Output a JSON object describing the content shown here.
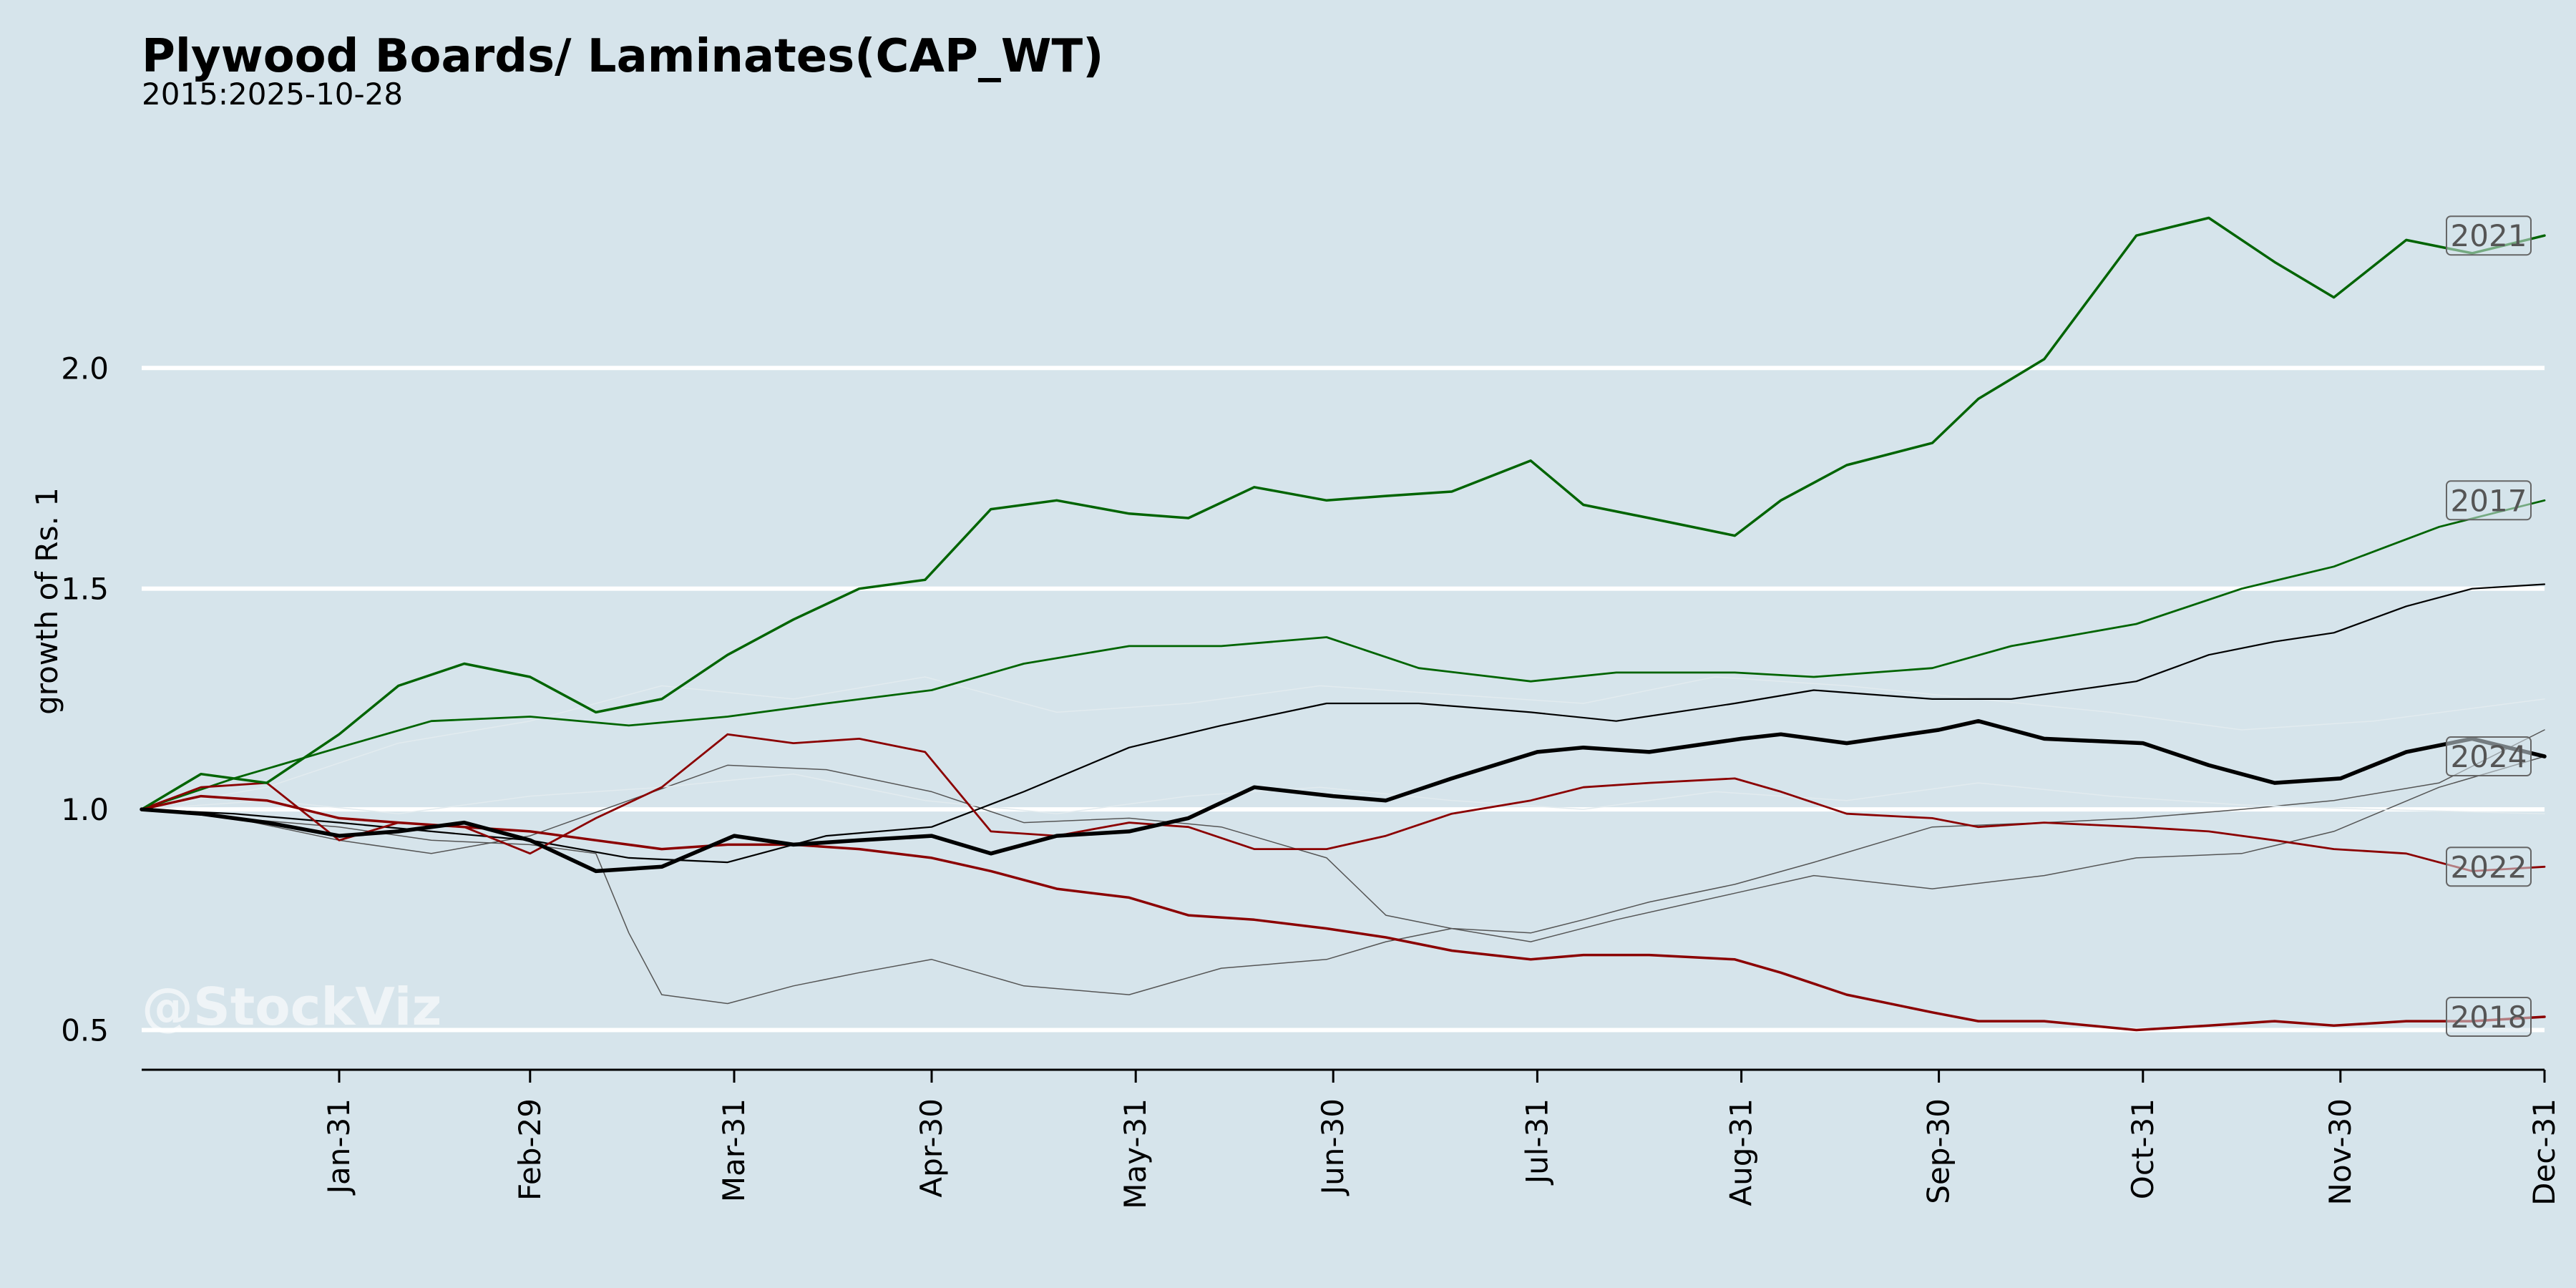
{
  "chart_data": {
    "type": "line",
    "title": "Plywood Boards/ Laminates(CAP_WT)",
    "subtitle": "2015:2025-10-28",
    "xlabel": "",
    "ylabel": "growth of Rs. 1",
    "watermark": "@StockViz",
    "x_ticks": [
      "Jan-31",
      "Feb-29",
      "Mar-31",
      "Apr-30",
      "May-31",
      "Jun-30",
      "Jul-31",
      "Aug-31",
      "Sep-30",
      "Oct-31",
      "Nov-30",
      "Dec-31"
    ],
    "y_ticks": [
      0.5,
      1.0,
      1.5,
      2.0
    ],
    "xlim": [
      1,
      366
    ],
    "ylim": [
      0.41,
      2.55
    ],
    "grid": true,
    "colors": {
      "background": "#d6e4eb",
      "grid": "#ffffff",
      "up": "#006400",
      "down": "#8b0000",
      "current": "#000000",
      "other": "#555555",
      "faint": "#e2ebef"
    },
    "series": [
      {
        "name": "2021",
        "color": "#006400",
        "width": 3.5,
        "labeled": true,
        "x": [
          1,
          10,
          20,
          31,
          40,
          50,
          60,
          70,
          80,
          90,
          100,
          110,
          120,
          130,
          140,
          151,
          160,
          170,
          181,
          190,
          200,
          212,
          220,
          230,
          243,
          250,
          260,
          273,
          280,
          290,
          304,
          315,
          325,
          334,
          345,
          355,
          366
        ],
        "y": [
          1.0,
          1.08,
          1.06,
          1.17,
          1.28,
          1.33,
          1.3,
          1.22,
          1.25,
          1.35,
          1.43,
          1.5,
          1.52,
          1.68,
          1.7,
          1.67,
          1.66,
          1.73,
          1.7,
          1.71,
          1.72,
          1.79,
          1.69,
          1.66,
          1.62,
          1.7,
          1.78,
          1.83,
          1.93,
          2.02,
          2.3,
          2.34,
          2.24,
          2.16,
          2.29,
          2.26,
          2.3
        ]
      },
      {
        "name": "2017",
        "color": "#006400",
        "width": 2.8,
        "labeled": true,
        "x": [
          1,
          15,
          31,
          45,
          60,
          75,
          90,
          105,
          121,
          135,
          151,
          165,
          181,
          195,
          212,
          225,
          243,
          255,
          273,
          285,
          304,
          320,
          334,
          350,
          366
        ],
        "y": [
          1.0,
          1.07,
          1.14,
          1.2,
          1.21,
          1.19,
          1.21,
          1.24,
          1.27,
          1.33,
          1.37,
          1.37,
          1.39,
          1.32,
          1.29,
          1.31,
          1.31,
          1.3,
          1.32,
          1.37,
          1.42,
          1.5,
          1.55,
          1.64,
          1.7
        ]
      },
      {
        "name": "2024",
        "color": "#000000",
        "width": 5.5,
        "labeled": true,
        "x": [
          1,
          10,
          20,
          31,
          40,
          50,
          60,
          70,
          80,
          91,
          100,
          110,
          121,
          130,
          140,
          151,
          160,
          170,
          182,
          190,
          200,
          213,
          220,
          230,
          244,
          250,
          260,
          274,
          280,
          290,
          305,
          315,
          325,
          335,
          345,
          355,
          366
        ],
        "y": [
          1.0,
          0.99,
          0.97,
          0.94,
          0.95,
          0.97,
          0.93,
          0.86,
          0.87,
          0.94,
          0.92,
          0.93,
          0.94,
          0.9,
          0.94,
          0.95,
          0.98,
          1.05,
          1.03,
          1.02,
          1.07,
          1.13,
          1.14,
          1.13,
          1.16,
          1.17,
          1.15,
          1.18,
          1.2,
          1.16,
          1.15,
          1.1,
          1.06,
          1.07,
          1.13,
          1.16,
          1.12
        ]
      },
      {
        "name": "2022",
        "color": "#8b0000",
        "width": 2.8,
        "labeled": true,
        "x": [
          1,
          10,
          20,
          31,
          40,
          50,
          60,
          70,
          80,
          90,
          100,
          110,
          120,
          130,
          140,
          151,
          160,
          170,
          181,
          190,
          200,
          212,
          220,
          230,
          243,
          250,
          260,
          273,
          280,
          290,
          304,
          315,
          325,
          334,
          345,
          355,
          366
        ],
        "y": [
          1.0,
          1.05,
          1.06,
          0.93,
          0.97,
          0.96,
          0.9,
          0.98,
          1.05,
          1.17,
          1.15,
          1.16,
          1.13,
          0.95,
          0.94,
          0.97,
          0.96,
          0.91,
          0.91,
          0.94,
          0.99,
          1.02,
          1.05,
          1.06,
          1.07,
          1.04,
          0.99,
          0.98,
          0.96,
          0.97,
          0.96,
          0.95,
          0.93,
          0.91,
          0.9,
          0.86,
          0.87
        ]
      },
      {
        "name": "2018",
        "color": "#8b0000",
        "width": 3.5,
        "labeled": true,
        "x": [
          1,
          10,
          20,
          31,
          40,
          50,
          60,
          70,
          80,
          90,
          100,
          110,
          121,
          130,
          140,
          151,
          160,
          170,
          181,
          190,
          200,
          212,
          220,
          230,
          243,
          250,
          260,
          273,
          280,
          290,
          304,
          315,
          325,
          334,
          345,
          355,
          366
        ],
        "y": [
          1.0,
          1.03,
          1.02,
          0.98,
          0.97,
          0.96,
          0.95,
          0.93,
          0.91,
          0.92,
          0.92,
          0.91,
          0.89,
          0.86,
          0.82,
          0.8,
          0.76,
          0.75,
          0.73,
          0.71,
          0.68,
          0.66,
          0.67,
          0.67,
          0.66,
          0.63,
          0.58,
          0.54,
          0.52,
          0.52,
          0.5,
          0.51,
          0.52,
          0.51,
          0.52,
          0.52,
          0.53
        ]
      },
      {
        "name": "",
        "color": "#000000",
        "width": 2.2,
        "labeled": false,
        "x": [
          1,
          15,
          31,
          45,
          60,
          75,
          90,
          105,
          121,
          135,
          151,
          165,
          181,
          195,
          212,
          225,
          243,
          255,
          273,
          285,
          304,
          315,
          325,
          334,
          345,
          355,
          366
        ],
        "y": [
          1.0,
          0.99,
          0.97,
          0.95,
          0.93,
          0.89,
          0.88,
          0.94,
          0.96,
          1.04,
          1.14,
          1.19,
          1.24,
          1.24,
          1.22,
          1.2,
          1.24,
          1.27,
          1.25,
          1.25,
          1.29,
          1.35,
          1.38,
          1.4,
          1.46,
          1.5,
          1.51
        ]
      },
      {
        "name": "",
        "color": "#555555",
        "width": 1.5,
        "labeled": false,
        "x": [
          1,
          15,
          31,
          45,
          60,
          70,
          75,
          80,
          90,
          100,
          110,
          121,
          135,
          151,
          165,
          181,
          190,
          200,
          212,
          220,
          230,
          243,
          255,
          273,
          290,
          304,
          320,
          334,
          350,
          366
        ],
        "y": [
          1.0,
          0.98,
          0.96,
          0.93,
          0.92,
          0.9,
          0.72,
          0.58,
          0.56,
          0.6,
          0.63,
          0.66,
          0.6,
          0.58,
          0.64,
          0.66,
          0.7,
          0.73,
          0.72,
          0.75,
          0.79,
          0.83,
          0.88,
          0.96,
          0.97,
          0.98,
          1.0,
          1.02,
          1.06,
          1.18
        ]
      },
      {
        "name": "",
        "color": "#555555",
        "width": 1.5,
        "labeled": false,
        "x": [
          1,
          15,
          31,
          45,
          60,
          75,
          90,
          105,
          121,
          135,
          151,
          165,
          181,
          190,
          200,
          212,
          225,
          243,
          255,
          273,
          290,
          304,
          320,
          334,
          350,
          366
        ],
        "y": [
          1.0,
          0.98,
          0.93,
          0.9,
          0.94,
          1.02,
          1.1,
          1.09,
          1.04,
          0.97,
          0.98,
          0.96,
          0.89,
          0.76,
          0.73,
          0.7,
          0.75,
          0.81,
          0.85,
          0.82,
          0.85,
          0.89,
          0.9,
          0.95,
          1.05,
          1.12
        ]
      },
      {
        "name": "",
        "color": "#e2ebef",
        "width": 1.5,
        "labeled": false,
        "x": [
          1,
          20,
          40,
          60,
          80,
          100,
          120,
          140,
          160,
          180,
          200,
          220,
          240,
          260,
          280,
          300,
          320,
          340,
          366
        ],
        "y": [
          1.0,
          1.05,
          1.15,
          1.2,
          1.28,
          1.25,
          1.3,
          1.22,
          1.24,
          1.28,
          1.26,
          1.24,
          1.3,
          1.28,
          1.25,
          1.22,
          1.18,
          1.2,
          1.25
        ]
      },
      {
        "name": "",
        "color": "#e2ebef",
        "width": 1.5,
        "labeled": false,
        "x": [
          1,
          20,
          40,
          60,
          80,
          100,
          120,
          140,
          160,
          180,
          200,
          220,
          240,
          260,
          280,
          300,
          320,
          340,
          366
        ],
        "y": [
          1.0,
          1.02,
          0.99,
          1.03,
          1.05,
          1.08,
          1.02,
          0.99,
          1.03,
          1.05,
          1.02,
          1.0,
          1.04,
          1.02,
          1.06,
          1.03,
          1.01,
          1.0,
          0.99
        ]
      }
    ]
  }
}
